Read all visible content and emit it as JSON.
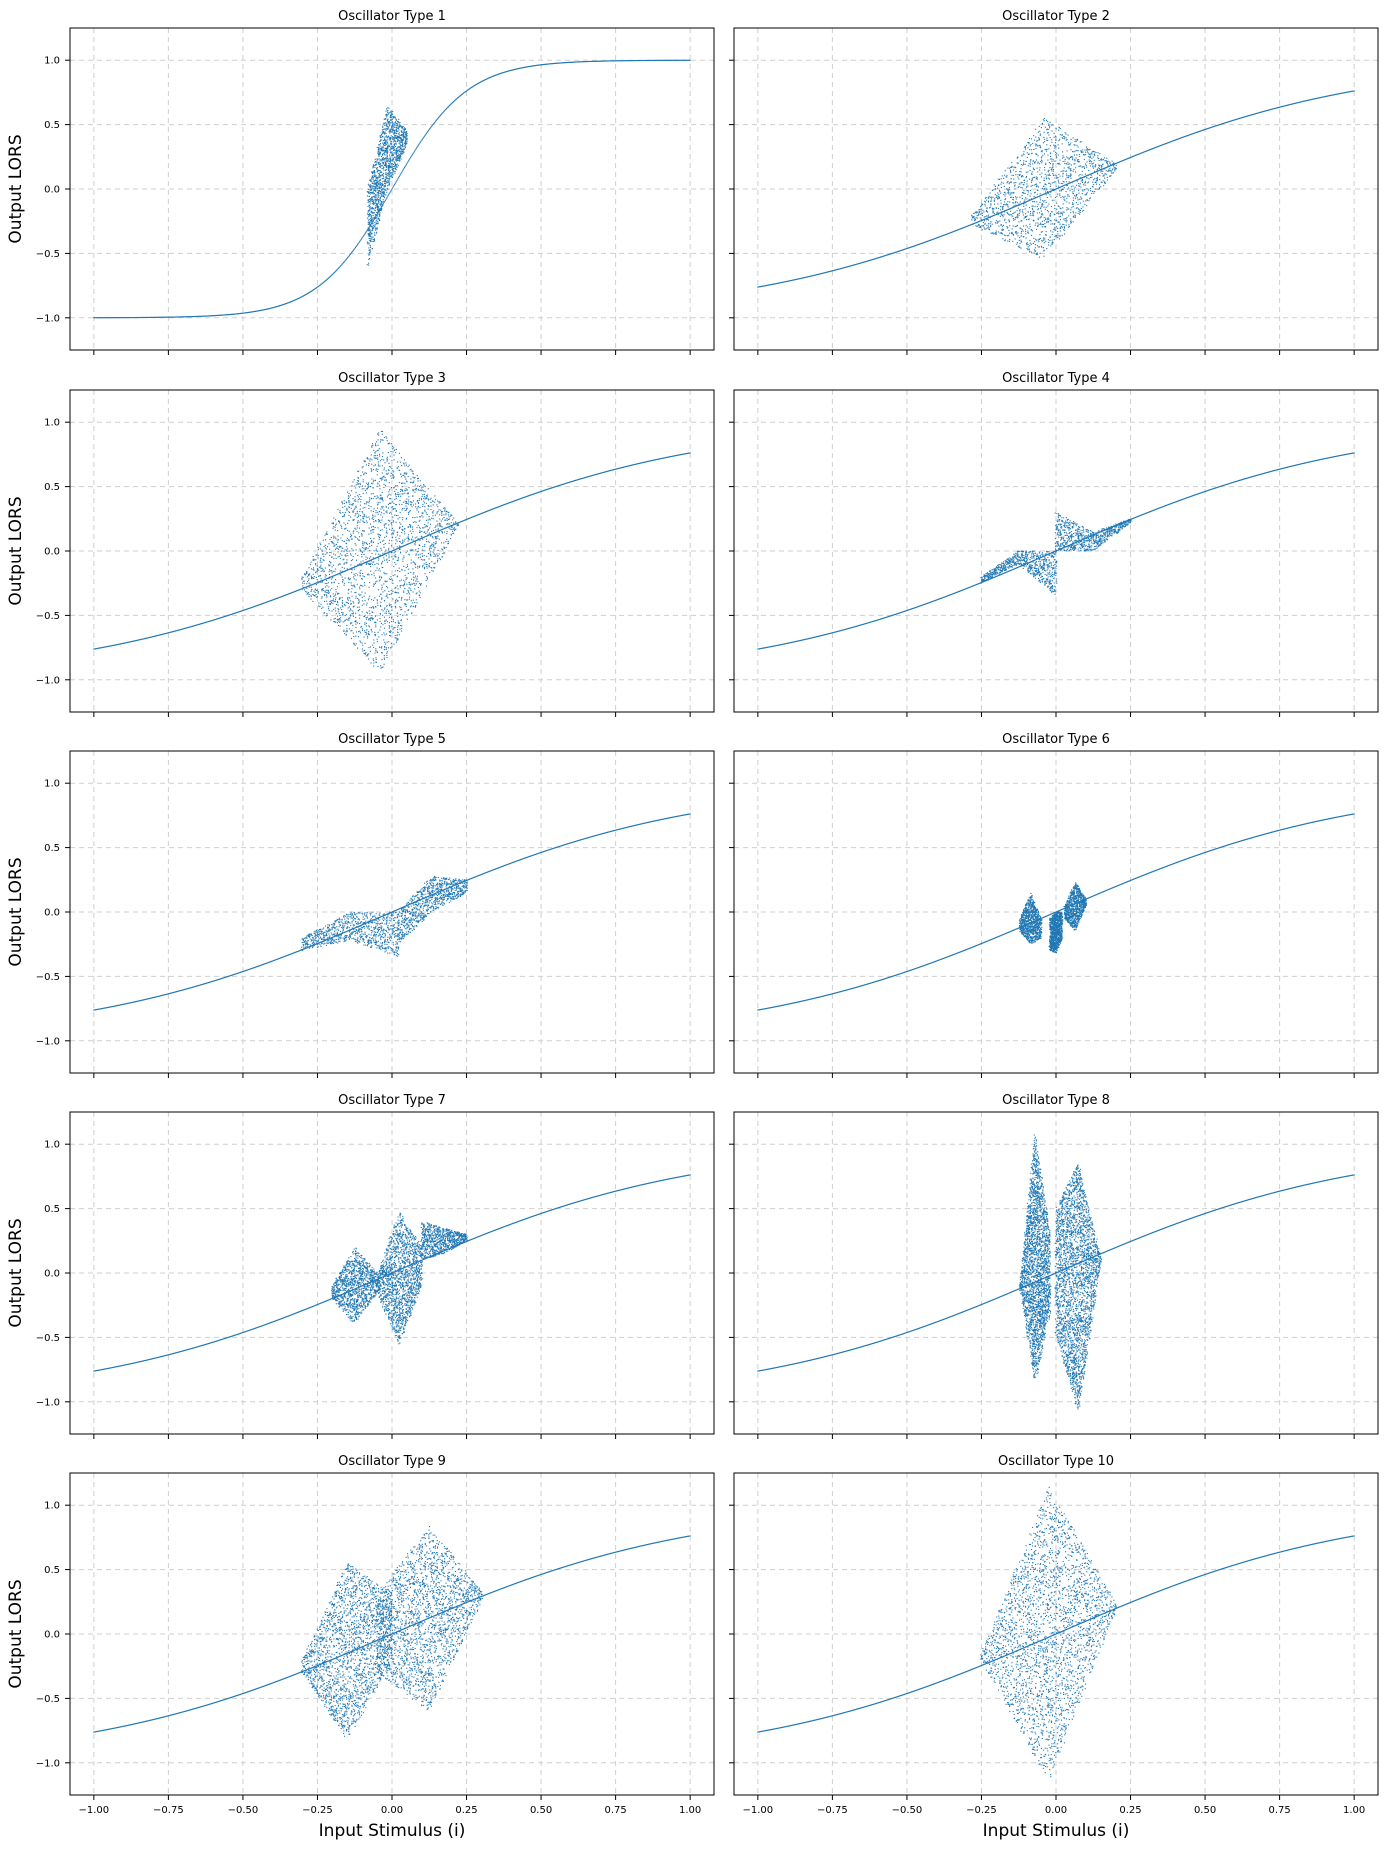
{
  "chart_data": {
    "type": "scatter",
    "color": "#1f77b4",
    "xlim": [
      -1.08,
      1.08
    ],
    "ylim": [
      -1.25,
      1.25
    ],
    "xticks": [
      -1.0,
      -0.75,
      -0.5,
      -0.25,
      0.0,
      0.25,
      0.5,
      0.75,
      1.0
    ],
    "xtick_labels": [
      "−1.00",
      "−0.75",
      "−0.50",
      "−0.25",
      "0.00",
      "0.25",
      "0.50",
      "0.75",
      "1.00"
    ],
    "yticks": [
      -1.0,
      -0.5,
      0.0,
      0.5,
      1.0
    ],
    "ytick_labels": [
      "−1.0",
      "−0.5",
      "0.0",
      "0.5",
      "1.0"
    ],
    "xlabel": "Input Stimulus (i)",
    "ylabel": "Output LORS",
    "grid": true,
    "panels": [
      {
        "title": "Oscillator Type 1",
        "base": "tanh4",
        "regions": [
          {
            "x_min": -0.08,
            "x_max": 0.05,
            "y_lo": [
              -0.6,
              0.0,
              0.35
            ],
            "y_hi": [
              0.0,
              0.65,
              0.45
            ]
          }
        ]
      },
      {
        "title": "Oscillator Type 2",
        "base": "tanh1",
        "regions": [
          {
            "x_min": -0.28,
            "x_max": 0.2,
            "y_lo": [
              -0.28,
              -0.55,
              0.14
            ],
            "y_hi": [
              -0.2,
              0.55,
              0.2
            ]
          }
        ]
      },
      {
        "title": "Oscillator Type 3",
        "base": "tanh1",
        "regions": [
          {
            "x_min": -0.3,
            "x_max": 0.22,
            "y_lo": [
              -0.3,
              -0.95,
              0.17
            ],
            "y_hi": [
              -0.2,
              0.95,
              0.22
            ]
          }
        ]
      },
      {
        "title": "Oscillator Type 4",
        "base": "tanh1",
        "regions": [
          {
            "x_min": -0.25,
            "x_max": 0.0,
            "y_lo": [
              -0.25,
              -0.1,
              -0.35
            ],
            "y_hi": [
              -0.2,
              0.0,
              0.0
            ]
          },
          {
            "x_min": 0.0,
            "x_max": 0.25,
            "y_lo": [
              0.0,
              0.0,
              0.22
            ],
            "y_hi": [
              0.3,
              0.15,
              0.25
            ]
          }
        ]
      },
      {
        "title": "Oscillator Type 5",
        "base": "tanh1",
        "regions": [
          {
            "x_min": -0.3,
            "x_max": 0.02,
            "y_lo": [
              -0.3,
              -0.22,
              -0.35
            ],
            "y_hi": [
              -0.2,
              0.0,
              0.0
            ]
          },
          {
            "x_min": 0.02,
            "x_max": 0.25,
            "y_lo": [
              -0.25,
              0.0,
              0.15
            ],
            "y_hi": [
              0.0,
              0.28,
              0.25
            ]
          }
        ]
      },
      {
        "title": "Oscillator Type 6",
        "base": "tanh1",
        "regions": [
          {
            "x_min": -0.12,
            "x_max": -0.05,
            "y_lo": [
              -0.15,
              -0.25,
              -0.2
            ],
            "y_hi": [
              -0.05,
              0.15,
              -0.05
            ]
          },
          {
            "x_min": -0.02,
            "x_max": 0.02,
            "y_lo": [
              -0.3,
              -0.32,
              -0.2
            ],
            "y_hi": [
              -0.05,
              0.0,
              0.0
            ]
          },
          {
            "x_min": 0.03,
            "x_max": 0.1,
            "y_lo": [
              -0.05,
              -0.15,
              0.05
            ],
            "y_hi": [
              0.05,
              0.23,
              0.1
            ]
          }
        ]
      },
      {
        "title": "Oscillator Type 7",
        "base": "tanh1",
        "regions": [
          {
            "x_min": -0.2,
            "x_max": -0.05,
            "y_lo": [
              -0.2,
              -0.4,
              -0.15
            ],
            "y_hi": [
              -0.1,
              0.2,
              0.0
            ]
          },
          {
            "x_min": -0.05,
            "x_max": 0.1,
            "y_lo": [
              -0.15,
              -0.55,
              -0.1
            ],
            "y_hi": [
              0.0,
              0.47,
              0.2
            ]
          },
          {
            "x_min": 0.1,
            "x_max": 0.25,
            "y_lo": [
              0.1,
              0.15,
              0.25
            ],
            "y_hi": [
              0.4,
              0.35,
              0.3
            ]
          }
        ]
      },
      {
        "title": "Oscillator Type 8",
        "base": "tanh1",
        "regions": [
          {
            "x_min": -0.12,
            "x_max": -0.02,
            "y_lo": [
              -0.12,
              -0.85,
              -0.3
            ],
            "y_hi": [
              -0.08,
              1.08,
              0.3
            ]
          },
          {
            "x_min": 0.0,
            "x_max": 0.15,
            "y_lo": [
              -0.5,
              -1.08,
              0.08
            ],
            "y_hi": [
              0.5,
              0.85,
              0.12
            ]
          }
        ]
      },
      {
        "title": "Oscillator Type 9",
        "base": "tanh1",
        "regions": [
          {
            "x_min": -0.3,
            "x_max": 0.0,
            "y_lo": [
              -0.3,
              -0.83,
              -0.2
            ],
            "y_hi": [
              -0.2,
              0.56,
              0.3
            ]
          },
          {
            "x_min": -0.05,
            "x_max": 0.3,
            "y_lo": [
              -0.3,
              -0.6,
              0.25
            ],
            "y_hi": [
              0.3,
              0.84,
              0.33
            ]
          }
        ]
      },
      {
        "title": "Oscillator Type 10",
        "base": "tanh1",
        "regions": [
          {
            "x_min": -0.25,
            "x_max": 0.2,
            "y_lo": [
              -0.2,
              -1.15,
              0.18
            ],
            "y_hi": [
              -0.15,
              1.15,
              0.25
            ]
          }
        ]
      }
    ]
  }
}
